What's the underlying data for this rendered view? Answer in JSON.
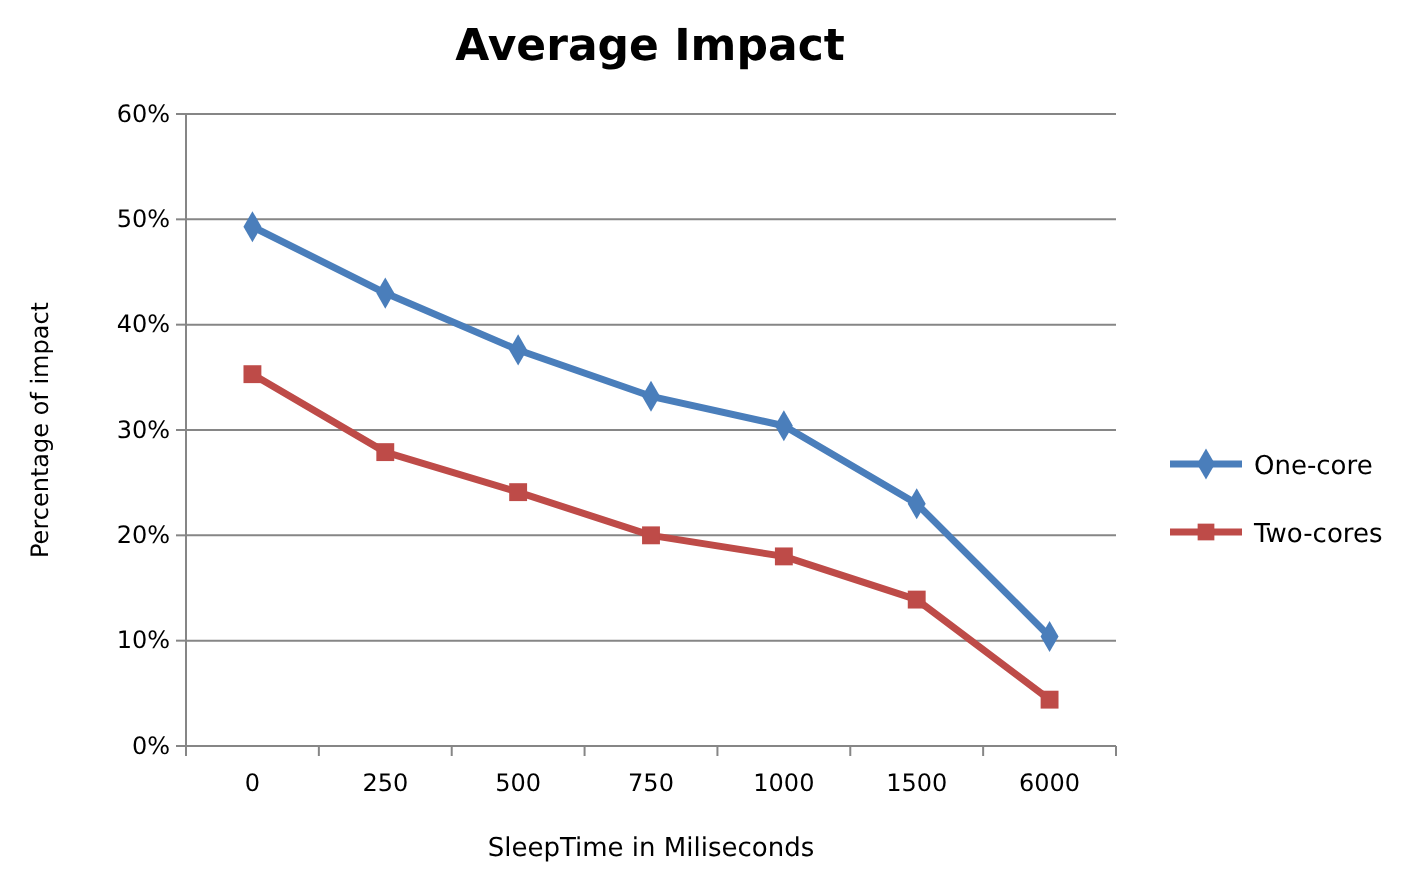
{
  "chart_data": {
    "type": "line",
    "title": "Average Impact",
    "xlabel": "SleepTime in Miliseconds",
    "ylabel": "Percentage of impact",
    "categories": [
      "0",
      "250",
      "500",
      "750",
      "1000",
      "1500",
      "6000"
    ],
    "series": [
      {
        "name": "One-core",
        "color": "#4a7ebb",
        "marker": "diamond",
        "values": [
          49.3,
          43,
          37.6,
          33.2,
          30.4,
          23,
          10.4
        ]
      },
      {
        "name": "Two-cores",
        "color": "#be4b48",
        "marker": "square",
        "values": [
          35.3,
          27.9,
          24.1,
          20,
          18,
          13.9,
          4.4
        ]
      }
    ],
    "ylim": [
      0,
      60
    ],
    "yticks": [
      {
        "value": 0,
        "label": "0%"
      },
      {
        "value": 10,
        "label": "10%"
      },
      {
        "value": 20,
        "label": "20%"
      },
      {
        "value": 30,
        "label": "30%"
      },
      {
        "value": 40,
        "label": "40%"
      },
      {
        "value": 50,
        "label": "50%"
      },
      {
        "value": 60,
        "label": "60%"
      }
    ],
    "grid": "y",
    "legend": "right",
    "line_style": "solid"
  }
}
